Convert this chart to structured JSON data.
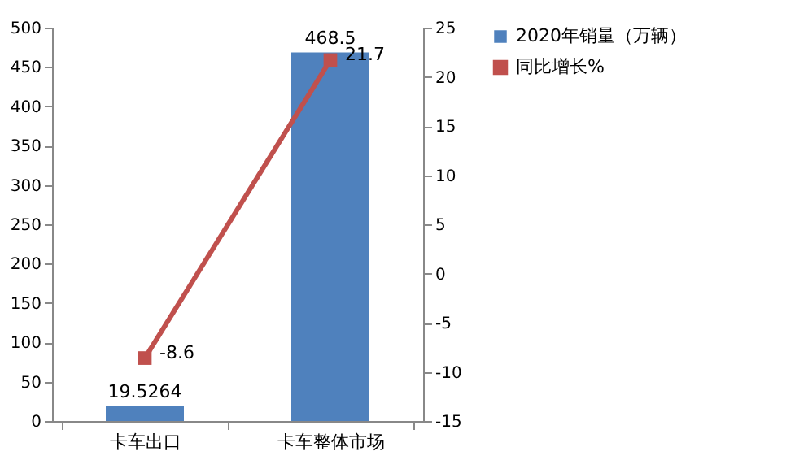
{
  "chart_data": {
    "type": "bar",
    "categories": [
      "卡车出口",
      "卡车整体市场"
    ],
    "series": [
      {
        "name": "2020年销量（万辆）",
        "color": "#4f81bd",
        "values": [
          19.5264,
          468.5
        ]
      },
      {
        "name": "同比增长%",
        "type": "line",
        "axis": "y2",
        "color": "#c0504d",
        "values": [
          -8.6,
          21.7
        ]
      }
    ],
    "ylim": [
      0,
      500
    ],
    "yticks": [
      0,
      50,
      100,
      150,
      200,
      250,
      300,
      350,
      400,
      450,
      500
    ],
    "y2lim": [
      -15,
      25
    ],
    "y2ticks": [
      -15,
      -10,
      -5,
      0,
      5,
      10,
      15,
      20,
      25
    ],
    "data_labels": true,
    "legend": "right",
    "marker": "square",
    "line_style": "solid",
    "grid": false
  }
}
